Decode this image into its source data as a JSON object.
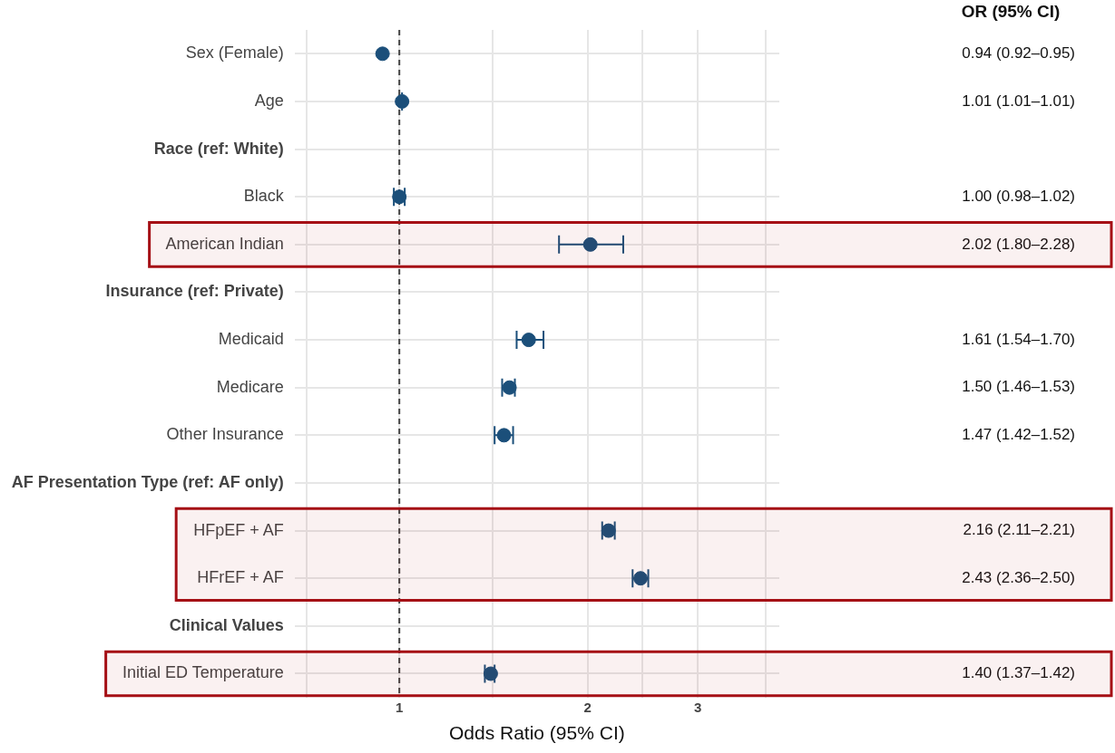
{
  "chart_data": {
    "type": "scatter",
    "orientation": "horizontal",
    "categories": [
      "Sex (Female)",
      "Age",
      "Race (ref: White)",
      "Black",
      "American Indian",
      "Insurance (ref: Private)",
      "Medicaid",
      "Medicare",
      "Other Insurance",
      "AF Presentation Type (ref: AF only)",
      "HFpEF + AF",
      "HFrEF + AF",
      "Clinical Values",
      "Initial ED Temperature"
    ],
    "values": [
      0.94,
      1.01,
      null,
      1.0,
      2.02,
      null,
      1.61,
      1.5,
      1.47,
      null,
      2.16,
      2.43,
      null,
      1.4
    ],
    "errors": [
      null,
      [
        1.01,
        1.01
      ],
      null,
      [
        0.98,
        1.02
      ],
      [
        1.8,
        2.28
      ],
      null,
      [
        1.54,
        1.7
      ],
      [
        1.46,
        1.53
      ],
      [
        1.42,
        1.52
      ],
      null,
      [
        2.11,
        2.21
      ],
      [
        2.36,
        2.5
      ],
      null,
      [
        1.37,
        1.42
      ]
    ],
    "value_labels": [
      "0.94 (0.92–0.95)",
      "1.01 (1.01–1.01)",
      null,
      "1.00 (0.98–1.02)",
      "2.02 (1.80–2.28)",
      null,
      "1.61 (1.54–1.70)",
      "1.50 (1.46–1.53)",
      "1.47 (1.42–1.52)",
      null,
      "2.16 (2.11–2.21)",
      "2.43 (2.36–2.50)",
      null,
      "1.40 (1.37–1.42)"
    ],
    "color": "#1b4f7a",
    "marker": "circle",
    "log": "x",
    "xlim": [
      0.68,
      4.05
    ],
    "xticks": [
      {
        "value": 0.71,
        "label": null
      },
      1,
      {
        "value": 1.41,
        "label": null
      },
      2,
      {
        "value": 2.45,
        "label": null
      },
      3,
      {
        "value": 3.85,
        "label": null
      }
    ],
    "xlabel": "Odds Ratio (95% CI)",
    "grid": true,
    "legend": false,
    "ref_lines": [
      {
        "axis": "x",
        "value": 1,
        "line_style": "dashed",
        "color": "#444444"
      }
    ],
    "bands": [
      {
        "axis": "y",
        "from": "American Indian",
        "to": "American Indian",
        "color": "#a50f15"
      },
      {
        "axis": "y",
        "from": "HFpEF + AF",
        "to": "HFrEF + AF",
        "color": "#a50f15"
      },
      {
        "axis": "y",
        "from": "Initial ED Temperature",
        "to": "Initial ED Temperature",
        "color": "#a50f15"
      }
    ],
    "annotations": [
      "OR (95% CI)"
    ]
  }
}
